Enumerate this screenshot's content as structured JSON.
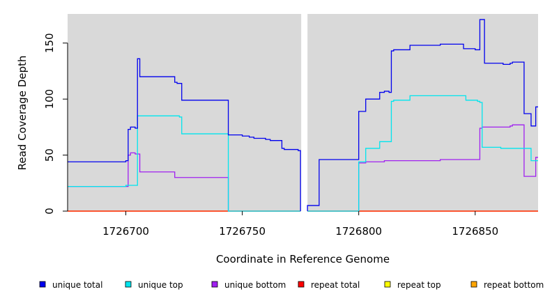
{
  "chart_data": {
    "type": "line",
    "title": "",
    "xlabel": "Coordinate in Reference Genome",
    "ylabel": "Read Coverage Depth",
    "xlim": [
      1726675,
      1726877
    ],
    "ylim": [
      0,
      176
    ],
    "x_ticks": [
      1726700,
      1726750,
      1726800,
      1726850
    ],
    "y_ticks": [
      0,
      50,
      100,
      150
    ],
    "gap": [
      1726775,
      1726778
    ],
    "grid": false,
    "legend_position": "bottom",
    "series": [
      {
        "name": "unique total",
        "color": "#0000ee",
        "values": [
          [
            1726675,
            44
          ],
          [
            1726700,
            44
          ],
          [
            1726700,
            45
          ],
          [
            1726701,
            45
          ],
          [
            1726701,
            73
          ],
          [
            1726702,
            73
          ],
          [
            1726702,
            75
          ],
          [
            1726704,
            75
          ],
          [
            1726704,
            74
          ],
          [
            1726705,
            74
          ],
          [
            1726705,
            136
          ],
          [
            1726706,
            136
          ],
          [
            1726706,
            120
          ],
          [
            1726721,
            120
          ],
          [
            1726721,
            115
          ],
          [
            1726722,
            115
          ],
          [
            1726722,
            114
          ],
          [
            1726724,
            114
          ],
          [
            1726724,
            99
          ],
          [
            1726744,
            99
          ],
          [
            1726744,
            68
          ],
          [
            1726750,
            68
          ],
          [
            1726750,
            67
          ],
          [
            1726753,
            67
          ],
          [
            1726753,
            66
          ],
          [
            1726755,
            66
          ],
          [
            1726755,
            65
          ],
          [
            1726760,
            65
          ],
          [
            1726760,
            64
          ],
          [
            1726762,
            64
          ],
          [
            1726762,
            63
          ],
          [
            1726767,
            63
          ],
          [
            1726767,
            56
          ],
          [
            1726768,
            56
          ],
          [
            1726768,
            55
          ],
          [
            1726774,
            55
          ],
          [
            1726774,
            54
          ],
          [
            1726775,
            54
          ],
          [
            1726775,
            0
          ]
        ]
      },
      {
        "name": "unique total",
        "color": "#0000ee",
        "values": [
          [
            1726778,
            0
          ],
          [
            1726778,
            5
          ],
          [
            1726783,
            5
          ],
          [
            1726783,
            46
          ],
          [
            1726800,
            46
          ],
          [
            1726800,
            89
          ],
          [
            1726803,
            89
          ],
          [
            1726803,
            100
          ],
          [
            1726809,
            100
          ],
          [
            1726809,
            106
          ],
          [
            1726811,
            106
          ],
          [
            1726811,
            107
          ],
          [
            1726813,
            107
          ],
          [
            1726813,
            106
          ],
          [
            1726814,
            106
          ],
          [
            1726814,
            143
          ],
          [
            1726815,
            143
          ],
          [
            1726815,
            144
          ],
          [
            1726822,
            144
          ],
          [
            1726822,
            148
          ],
          [
            1726835,
            148
          ],
          [
            1726835,
            149
          ],
          [
            1726845,
            149
          ],
          [
            1726845,
            145
          ],
          [
            1726850,
            145
          ],
          [
            1726850,
            144
          ],
          [
            1726852,
            144
          ],
          [
            1726852,
            171
          ],
          [
            1726854,
            171
          ],
          [
            1726854,
            132
          ],
          [
            1726862,
            132
          ],
          [
            1726862,
            131
          ],
          [
            1726865,
            131
          ],
          [
            1726865,
            132
          ],
          [
            1726866,
            132
          ],
          [
            1726866,
            133
          ],
          [
            1726871,
            133
          ],
          [
            1726871,
            87
          ],
          [
            1726874,
            87
          ],
          [
            1726874,
            76
          ],
          [
            1726876,
            76
          ],
          [
            1726876,
            93
          ],
          [
            1726877,
            93
          ]
        ]
      },
      {
        "name": "unique top",
        "color": "#00e5ee",
        "values": [
          [
            1726675,
            22
          ],
          [
            1726700,
            22
          ],
          [
            1726700,
            23
          ],
          [
            1726705,
            23
          ],
          [
            1726705,
            85
          ],
          [
            1726723,
            85
          ],
          [
            1726723,
            84
          ],
          [
            1726724,
            84
          ],
          [
            1726724,
            69
          ],
          [
            1726744,
            69
          ],
          [
            1726744,
            0
          ],
          [
            1726775,
            0
          ]
        ]
      },
      {
        "name": "unique top",
        "color": "#00e5ee",
        "values": [
          [
            1726778,
            0
          ],
          [
            1726800,
            0
          ],
          [
            1726800,
            44
          ],
          [
            1726803,
            44
          ],
          [
            1726803,
            56
          ],
          [
            1726809,
            56
          ],
          [
            1726809,
            62
          ],
          [
            1726814,
            62
          ],
          [
            1726814,
            98
          ],
          [
            1726815,
            98
          ],
          [
            1726815,
            99
          ],
          [
            1726822,
            99
          ],
          [
            1726822,
            103
          ],
          [
            1726846,
            103
          ],
          [
            1726846,
            99
          ],
          [
            1726851,
            99
          ],
          [
            1726851,
            98
          ],
          [
            1726852,
            98
          ],
          [
            1726852,
            97
          ],
          [
            1726853,
            97
          ],
          [
            1726853,
            57
          ],
          [
            1726861,
            57
          ],
          [
            1726861,
            56
          ],
          [
            1726874,
            56
          ],
          [
            1726874,
            45
          ],
          [
            1726877,
            45
          ]
        ]
      },
      {
        "name": "unique bottom",
        "color": "#a020f0",
        "values": [
          [
            1726675,
            22
          ],
          [
            1726701,
            22
          ],
          [
            1726701,
            50
          ],
          [
            1726702,
            50
          ],
          [
            1726702,
            52
          ],
          [
            1726704,
            52
          ],
          [
            1726704,
            51
          ],
          [
            1726706,
            51
          ],
          [
            1726706,
            35
          ],
          [
            1726721,
            35
          ],
          [
            1726721,
            30
          ],
          [
            1726744,
            30
          ],
          [
            1726744,
            0
          ],
          [
            1726775,
            0
          ]
        ]
      },
      {
        "name": "unique bottom",
        "color": "#a020f0",
        "values": [
          [
            1726778,
            0
          ],
          [
            1726800,
            0
          ],
          [
            1726800,
            43
          ],
          [
            1726803,
            43
          ],
          [
            1726803,
            44
          ],
          [
            1726811,
            44
          ],
          [
            1726811,
            45
          ],
          [
            1726835,
            45
          ],
          [
            1726835,
            46
          ],
          [
            1726852,
            46
          ],
          [
            1726852,
            74
          ],
          [
            1726853,
            74
          ],
          [
            1726853,
            75
          ],
          [
            1726865,
            75
          ],
          [
            1726865,
            76
          ],
          [
            1726866,
            76
          ],
          [
            1726866,
            77
          ],
          [
            1726871,
            77
          ],
          [
            1726871,
            31
          ],
          [
            1726876,
            31
          ],
          [
            1726876,
            48
          ],
          [
            1726877,
            48
          ]
        ]
      },
      {
        "name": "repeat total",
        "color": "#ff0000",
        "values": [
          [
            1726675,
            0
          ],
          [
            1726775,
            0
          ]
        ]
      },
      {
        "name": "repeat total",
        "color": "#ff0000",
        "values": [
          [
            1726778,
            0
          ],
          [
            1726877,
            0
          ]
        ]
      },
      {
        "name": "repeat top",
        "color": "#ffff00",
        "values": [
          [
            1726675,
            0
          ],
          [
            1726775,
            0
          ]
        ]
      },
      {
        "name": "repeat top",
        "color": "#ffff00",
        "values": [
          [
            1726778,
            0
          ],
          [
            1726877,
            0
          ]
        ]
      },
      {
        "name": "repeat bottom",
        "color": "#ffa500",
        "values": [
          [
            1726675,
            0
          ],
          [
            1726775,
            0
          ]
        ]
      },
      {
        "name": "repeat bottom",
        "color": "#ffa500",
        "values": [
          [
            1726778,
            0
          ],
          [
            1726877,
            0
          ]
        ]
      }
    ],
    "legend": [
      {
        "label": "unique total",
        "color": "#0000ee"
      },
      {
        "label": "unique top",
        "color": "#00e5ee"
      },
      {
        "label": "unique bottom",
        "color": "#a020f0"
      },
      {
        "label": "repeat total",
        "color": "#ff0000"
      },
      {
        "label": "repeat top",
        "color": "#ffff00"
      },
      {
        "label": "repeat bottom",
        "color": "#ffa500"
      }
    ],
    "panel_color": "#d9d9d9"
  }
}
